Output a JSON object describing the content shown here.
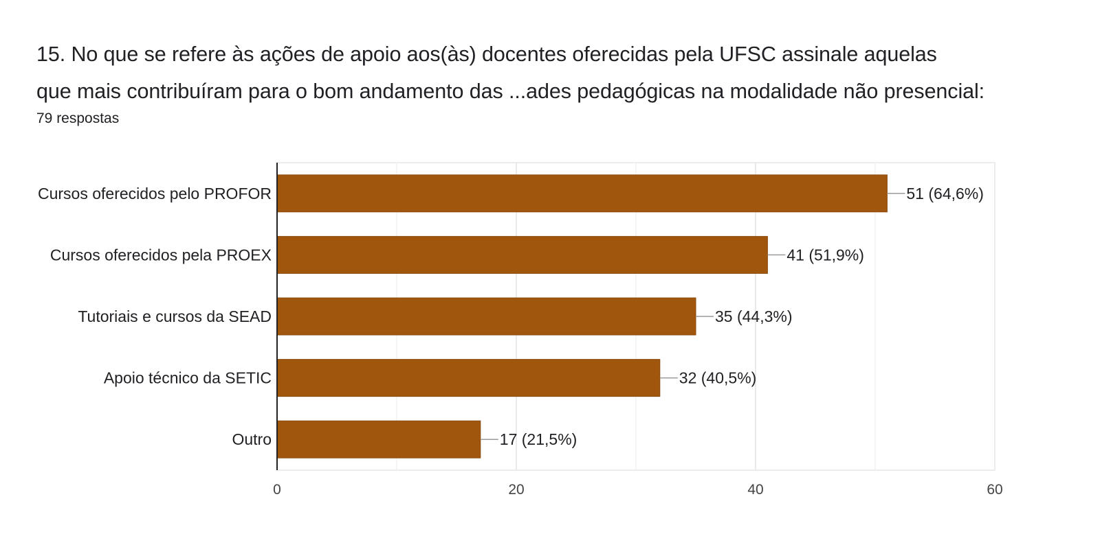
{
  "header": {
    "title_line1": "15. No que se refere às ações de apoio aos(às) docentes oferecidas pela UFSC assinale aquelas",
    "title_line2": "que mais contribuíram para o bom andamento das ...ades pedagógicas na modalidade não presencial:",
    "responses": "79 respostas"
  },
  "chart_data": {
    "type": "bar",
    "orientation": "horizontal",
    "categories": [
      "Cursos oferecidos pelo PROFOR",
      "Cursos oferecidos pela PROEX",
      "Tutoriais e cursos da SEAD",
      "Apoio técnico da SETIC",
      "Outro"
    ],
    "values": [
      51,
      41,
      35,
      32,
      17
    ],
    "data_labels": [
      "51 (64,6%)",
      "41 (51,9%)",
      "35 (44,3%)",
      "32 (40,5%)",
      "17 (21,5%)"
    ],
    "xlim": [
      0,
      60
    ],
    "xticks": [
      0,
      20,
      40,
      60
    ],
    "grid": true,
    "bar_color": "#a0560d"
  }
}
